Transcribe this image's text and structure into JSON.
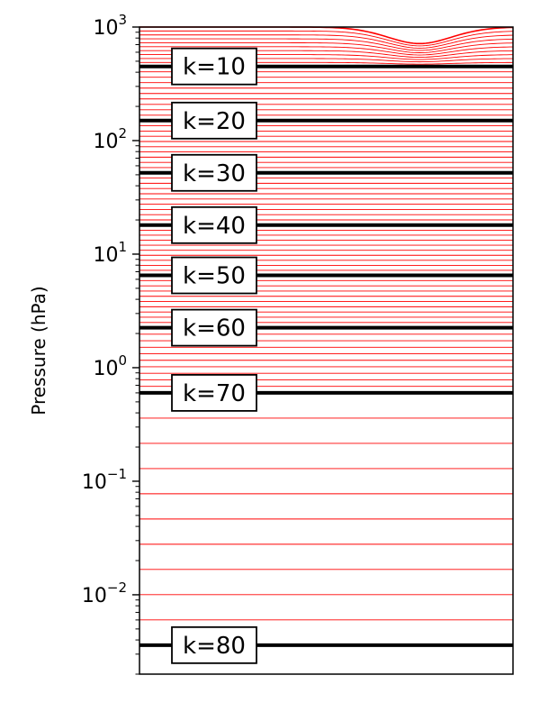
{
  "chart_data": {
    "type": "line",
    "title": "",
    "xlabel": "",
    "ylabel": "Pressure (hPa)",
    "yscale": "log",
    "y_inverted": true,
    "ylim": [
      1000,
      0.002
    ],
    "xticks": [],
    "yticks": [
      {
        "value": 0.01,
        "base": "10",
        "exp": "−2"
      },
      {
        "value": 0.1,
        "base": "10",
        "exp": "−1"
      },
      {
        "value": 1,
        "base": "10",
        "exp": "0"
      },
      {
        "value": 10,
        "base": "10",
        "exp": "1"
      },
      {
        "value": 100,
        "base": "10",
        "exp": "2"
      },
      {
        "value": 1000,
        "base": "10",
        "exp": "3"
      }
    ],
    "levels": {
      "count": 80,
      "line_color": "#ff0000",
      "highlight_color": "#000000",
      "surface_pressure_hpa": 1000,
      "top_pressure_hpa": 0.0036,
      "terrain": {
        "center_x": 0.75,
        "width": 0.13,
        "min_surface_pressure_hpa": 715,
        "affected_levels": 10
      }
    },
    "labeled_levels": [
      {
        "k": 10,
        "text": "k=10",
        "pressure_hpa": 450
      },
      {
        "k": 20,
        "text": "k=20",
        "pressure_hpa": 150
      },
      {
        "k": 30,
        "text": "k=30",
        "pressure_hpa": 52
      },
      {
        "k": 40,
        "text": "k=40",
        "pressure_hpa": 18
      },
      {
        "k": 50,
        "text": "k=50",
        "pressure_hpa": 6.5
      },
      {
        "k": 60,
        "text": "k=60",
        "pressure_hpa": 2.25
      },
      {
        "k": 70,
        "text": "k=70",
        "pressure_hpa": 0.6
      },
      {
        "k": 80,
        "text": "k=80",
        "pressure_hpa": 0.0036
      }
    ]
  }
}
